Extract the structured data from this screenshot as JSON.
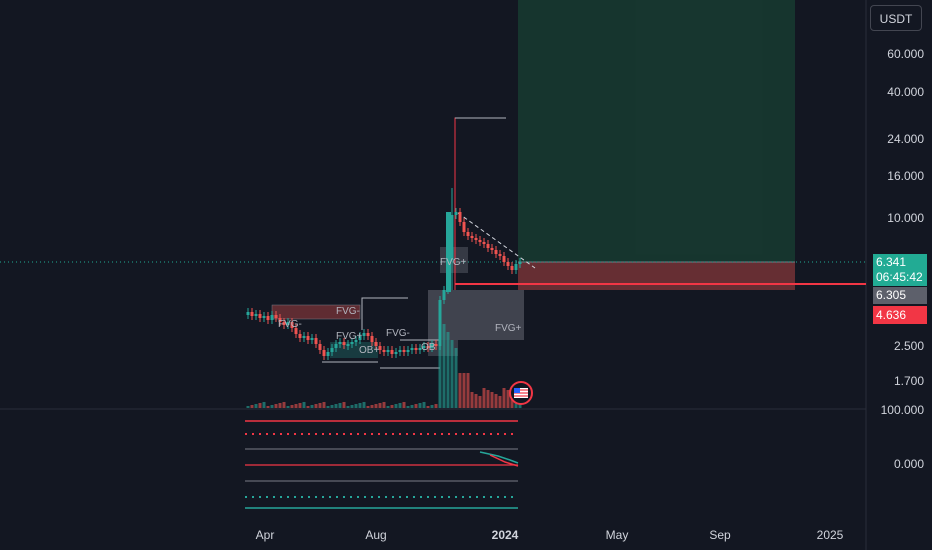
{
  "currency": "USDT",
  "price_axis": [
    "60.000",
    "40.000",
    "24.000",
    "16.000",
    "10.000",
    "2.500",
    "1.700"
  ],
  "indicator_axis": [
    "100.000",
    "0.000"
  ],
  "time_axis": [
    {
      "label": "Apr",
      "bold": false
    },
    {
      "label": "Aug",
      "bold": false
    },
    {
      "label": "2024",
      "bold": true
    },
    {
      "label": "May",
      "bold": false
    },
    {
      "label": "Sep",
      "bold": false
    },
    {
      "label": "2025",
      "bold": false
    }
  ],
  "current_price": "6.341",
  "countdown": "06:45:42",
  "price_badge_grey": "6.305",
  "price_badge_red": "4.636",
  "chart_labels": {
    "fvg_minus_1": "FVG-",
    "fvg_minus_2": "FVG-",
    "fvg_minus_3": "FVG-",
    "fvg_plus_1": "FVG+",
    "fvg_plus_2": "FVG+",
    "fvg_plus_3": "FVG+",
    "ob_plus_1": "OB+",
    "ob_plus_2": "OB",
    "fvg_stack": "FVG-"
  },
  "colors": {
    "background": "#131722",
    "bull": "#26a69a",
    "bear": "#ef5350",
    "target_zone": "rgba(38,166,91,0.22)",
    "stop_zone": "rgba(239,83,80,0.35)",
    "accent": "#22ab94"
  }
}
